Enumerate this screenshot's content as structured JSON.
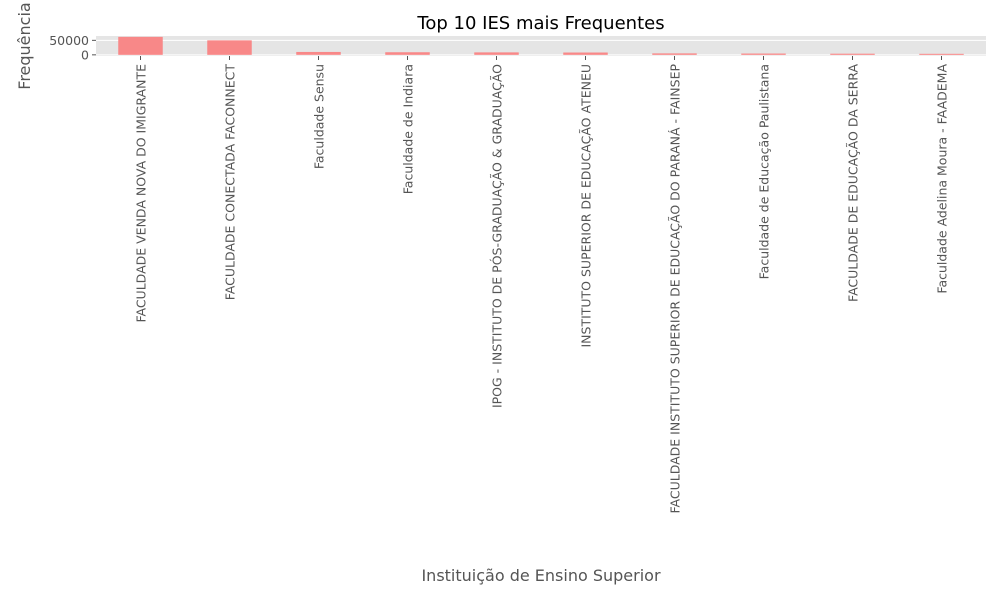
{
  "chart_data": {
    "type": "bar",
    "title": "Top 10 IES mais Frequentes",
    "xlabel": "Instituição de Ensino Superior",
    "ylabel": "Frequência",
    "categories": [
      "FACULDADE VENDA NOVA DO IMIGRANTE",
      "FACULDADE CONECTADA FACONNECT",
      "Faculdade Sensu",
      "Faculdade de Indiara",
      "IPOG - INSTITUTO DE PÓS-GRADUAÇÃO & GRADUAÇÃO",
      "INSTITUTO SUPERIOR DE EDUCAÇÃO ATENEU",
      "FACULDADE INSTITUTO SUPERIOR DE EDUCAÇÃO DO PARANÁ - FAINSEP",
      "Faculdade de Educação Paulistana",
      "FACULDADE DE EDUCAÇÃO DA SERRA",
      "Faculdade Adelina Moura - FAADEMA"
    ],
    "values": [
      62000,
      50000,
      10000,
      9000,
      8500,
      8000,
      5000,
      4500,
      4000,
      3500
    ],
    "ylim": [
      -4000,
      65000
    ],
    "yticks": [
      0,
      50000
    ],
    "ytick_labels": [
      "0",
      "50000"
    ],
    "grid": true,
    "colors": {
      "bar": "#F88888",
      "plot_background": "#E5E5E5",
      "grid": "#FFFFFF",
      "text": "#555555"
    }
  }
}
